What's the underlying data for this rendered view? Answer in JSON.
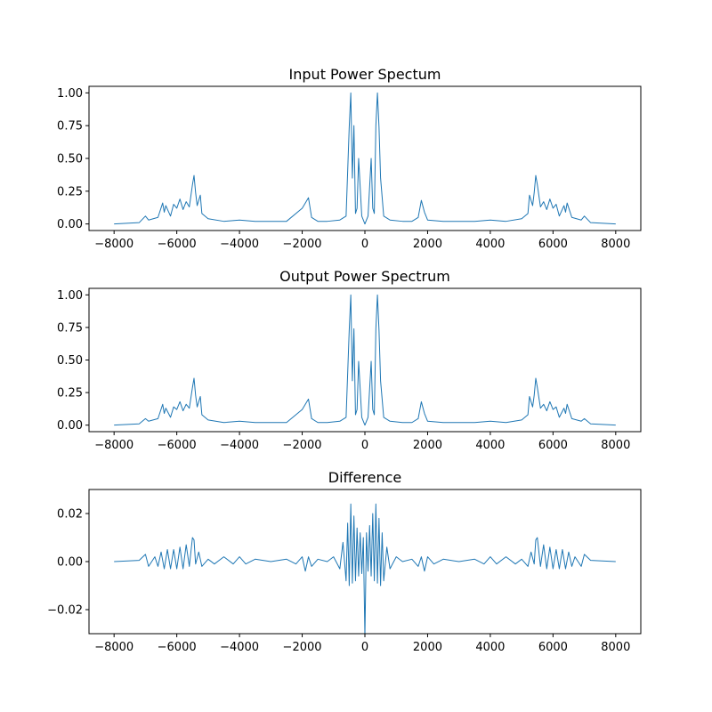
{
  "chart_data": [
    {
      "type": "line",
      "title": "Input Power Spectum",
      "xlabel": "",
      "ylabel": "",
      "xlim": [
        -8800,
        8800
      ],
      "ylim": [
        -0.05,
        1.05
      ],
      "xticks": [
        -8000,
        -6000,
        -4000,
        -2000,
        0,
        2000,
        4000,
        6000,
        8000
      ],
      "yticks": [
        0.0,
        0.25,
        0.5,
        0.75,
        1.0
      ],
      "xtick_labels": [
        "−8000",
        "−6000",
        "−4000",
        "−2000",
        "0",
        "2000",
        "4000",
        "6000",
        "8000"
      ],
      "ytick_labels": [
        "0.00",
        "0.25",
        "0.50",
        "0.75",
        "1.00"
      ],
      "grid": false,
      "color": "#1f77b4",
      "x": [
        -8000,
        -7200,
        -7000,
        -6900,
        -6600,
        -6450,
        -6400,
        -6350,
        -6200,
        -6100,
        -6000,
        -5900,
        -5800,
        -5700,
        -5600,
        -5500,
        -5450,
        -5400,
        -5350,
        -5250,
        -5200,
        -5000,
        -4500,
        -4000,
        -3500,
        -3000,
        -2500,
        -2000,
        -1900,
        -1800,
        -1700,
        -1500,
        -1200,
        -800,
        -600,
        -500,
        -450,
        -400,
        -350,
        -300,
        -250,
        -200,
        -100,
        -50,
        0,
        50,
        100,
        200,
        250,
        300,
        350,
        400,
        450,
        500,
        600,
        800,
        1200,
        1500,
        1700,
        1800,
        1900,
        2000,
        2500,
        3000,
        3500,
        4000,
        4500,
        5000,
        5200,
        5250,
        5350,
        5400,
        5450,
        5500,
        5600,
        5700,
        5800,
        5900,
        6000,
        6100,
        6200,
        6350,
        6400,
        6450,
        6600,
        6900,
        7000,
        7200,
        8000
      ],
      "y": [
        0.0,
        0.01,
        0.06,
        0.03,
        0.05,
        0.16,
        0.09,
        0.14,
        0.06,
        0.15,
        0.12,
        0.19,
        0.11,
        0.17,
        0.13,
        0.3,
        0.37,
        0.24,
        0.14,
        0.22,
        0.08,
        0.04,
        0.02,
        0.03,
        0.02,
        0.02,
        0.02,
        0.12,
        0.16,
        0.2,
        0.05,
        0.02,
        0.02,
        0.03,
        0.06,
        0.74,
        1.0,
        0.35,
        0.75,
        0.08,
        0.12,
        0.5,
        0.06,
        0.03,
        0.0,
        0.03,
        0.06,
        0.5,
        0.12,
        0.08,
        0.75,
        1.0,
        0.74,
        0.35,
        0.06,
        0.03,
        0.02,
        0.02,
        0.05,
        0.18,
        0.09,
        0.03,
        0.02,
        0.02,
        0.02,
        0.03,
        0.02,
        0.04,
        0.08,
        0.22,
        0.14,
        0.24,
        0.37,
        0.3,
        0.13,
        0.17,
        0.11,
        0.19,
        0.12,
        0.15,
        0.06,
        0.14,
        0.09,
        0.16,
        0.05,
        0.03,
        0.06,
        0.01,
        0.0
      ]
    },
    {
      "type": "line",
      "title": "Output Power Spectrum",
      "xlabel": "",
      "ylabel": "",
      "xlim": [
        -8800,
        8800
      ],
      "ylim": [
        -0.05,
        1.05
      ],
      "xticks": [
        -8000,
        -6000,
        -4000,
        -2000,
        0,
        2000,
        4000,
        6000,
        8000
      ],
      "yticks": [
        0.0,
        0.25,
        0.5,
        0.75,
        1.0
      ],
      "xtick_labels": [
        "−8000",
        "−6000",
        "−4000",
        "−2000",
        "0",
        "2000",
        "4000",
        "6000",
        "8000"
      ],
      "ytick_labels": [
        "0.00",
        "0.25",
        "0.50",
        "0.75",
        "1.00"
      ],
      "grid": false,
      "color": "#1f77b4",
      "x": [
        -8000,
        -7200,
        -7000,
        -6900,
        -6600,
        -6450,
        -6400,
        -6350,
        -6200,
        -6100,
        -6000,
        -5900,
        -5800,
        -5700,
        -5600,
        -5500,
        -5450,
        -5400,
        -5350,
        -5250,
        -5200,
        -5000,
        -4500,
        -4000,
        -3500,
        -3000,
        -2500,
        -2000,
        -1900,
        -1800,
        -1700,
        -1500,
        -1200,
        -800,
        -600,
        -500,
        -450,
        -400,
        -350,
        -300,
        -250,
        -200,
        -100,
        -50,
        0,
        50,
        100,
        200,
        250,
        300,
        350,
        400,
        450,
        500,
        600,
        800,
        1200,
        1500,
        1700,
        1800,
        1900,
        2000,
        2500,
        3000,
        3500,
        4000,
        4500,
        5000,
        5200,
        5250,
        5350,
        5400,
        5450,
        5500,
        5600,
        5700,
        5800,
        5900,
        6000,
        6100,
        6200,
        6350,
        6400,
        6450,
        6600,
        6900,
        7000,
        7200,
        8000
      ],
      "y": [
        0.0,
        0.01,
        0.05,
        0.03,
        0.05,
        0.16,
        0.09,
        0.13,
        0.06,
        0.14,
        0.12,
        0.18,
        0.11,
        0.16,
        0.13,
        0.29,
        0.36,
        0.23,
        0.14,
        0.22,
        0.08,
        0.04,
        0.02,
        0.03,
        0.02,
        0.02,
        0.02,
        0.12,
        0.16,
        0.2,
        0.05,
        0.02,
        0.02,
        0.03,
        0.06,
        0.73,
        1.0,
        0.34,
        0.74,
        0.08,
        0.12,
        0.49,
        0.06,
        0.03,
        0.0,
        0.03,
        0.06,
        0.49,
        0.12,
        0.08,
        0.74,
        1.0,
        0.73,
        0.34,
        0.06,
        0.03,
        0.02,
        0.02,
        0.05,
        0.18,
        0.09,
        0.03,
        0.02,
        0.02,
        0.02,
        0.03,
        0.02,
        0.04,
        0.08,
        0.22,
        0.14,
        0.23,
        0.36,
        0.29,
        0.13,
        0.16,
        0.11,
        0.18,
        0.12,
        0.14,
        0.06,
        0.13,
        0.09,
        0.16,
        0.05,
        0.03,
        0.05,
        0.01,
        0.0
      ]
    },
    {
      "type": "line",
      "title": "Difference",
      "xlabel": "",
      "ylabel": "",
      "xlim": [
        -8800,
        8800
      ],
      "ylim": [
        -0.03,
        0.03
      ],
      "xticks": [
        -8000,
        -6000,
        -4000,
        -2000,
        0,
        2000,
        4000,
        6000,
        8000
      ],
      "yticks": [
        -0.02,
        0.0,
        0.02
      ],
      "xtick_labels": [
        "−8000",
        "−6000",
        "−4000",
        "−2000",
        "0",
        "2000",
        "4000",
        "6000",
        "8000"
      ],
      "ytick_labels": [
        "−0.02",
        "0.00",
        "0.02"
      ],
      "grid": false,
      "color": "#1f77b4",
      "x": [
        -8000,
        -7200,
        -7000,
        -6900,
        -6700,
        -6600,
        -6500,
        -6400,
        -6300,
        -6200,
        -6100,
        -6000,
        -5900,
        -5800,
        -5700,
        -5600,
        -5500,
        -5450,
        -5400,
        -5300,
        -5200,
        -5000,
        -4800,
        -4500,
        -4200,
        -4000,
        -3800,
        -3500,
        -3000,
        -2500,
        -2200,
        -2000,
        -1900,
        -1800,
        -1700,
        -1500,
        -1200,
        -1000,
        -800,
        -700,
        -600,
        -550,
        -500,
        -450,
        -400,
        -350,
        -300,
        -250,
        -200,
        -150,
        -100,
        -50,
        0,
        50,
        100,
        150,
        200,
        250,
        300,
        350,
        400,
        450,
        500,
        550,
        600,
        700,
        800,
        1000,
        1200,
        1500,
        1700,
        1800,
        1900,
        2000,
        2200,
        2500,
        3000,
        3500,
        3800,
        4000,
        4200,
        4500,
        4800,
        5000,
        5200,
        5300,
        5400,
        5450,
        5500,
        5600,
        5700,
        5800,
        5900,
        6000,
        6100,
        6200,
        6300,
        6400,
        6500,
        6600,
        6700,
        6900,
        7000,
        7200,
        8000
      ],
      "y": [
        0.0,
        0.0005,
        0.003,
        -0.002,
        0.002,
        -0.002,
        0.004,
        -0.003,
        0.005,
        -0.003,
        0.005,
        -0.003,
        0.006,
        -0.003,
        0.007,
        -0.002,
        0.01,
        0.009,
        -0.001,
        0.004,
        -0.002,
        0.001,
        -0.001,
        0.002,
        -0.001,
        0.002,
        -0.001,
        0.001,
        0.0,
        0.001,
        -0.001,
        0.002,
        -0.004,
        0.002,
        -0.002,
        0.001,
        0.0,
        0.002,
        -0.003,
        0.008,
        -0.008,
        0.016,
        -0.01,
        0.024,
        -0.009,
        0.019,
        -0.008,
        0.014,
        -0.006,
        0.012,
        -0.005,
        0.01,
        -0.031,
        0.012,
        -0.004,
        0.015,
        -0.006,
        0.02,
        -0.008,
        0.024,
        -0.009,
        0.018,
        -0.01,
        0.012,
        -0.008,
        0.006,
        -0.003,
        0.002,
        0.0,
        0.001,
        -0.002,
        0.002,
        -0.004,
        0.002,
        -0.001,
        0.001,
        0.0,
        0.001,
        -0.001,
        0.002,
        -0.001,
        0.002,
        -0.001,
        0.001,
        -0.002,
        0.004,
        -0.001,
        0.009,
        0.01,
        -0.002,
        0.007,
        -0.003,
        0.006,
        -0.003,
        0.005,
        -0.003,
        0.005,
        -0.003,
        0.004,
        -0.002,
        0.002,
        -0.002,
        0.003,
        0.0005,
        0.0
      ]
    }
  ]
}
